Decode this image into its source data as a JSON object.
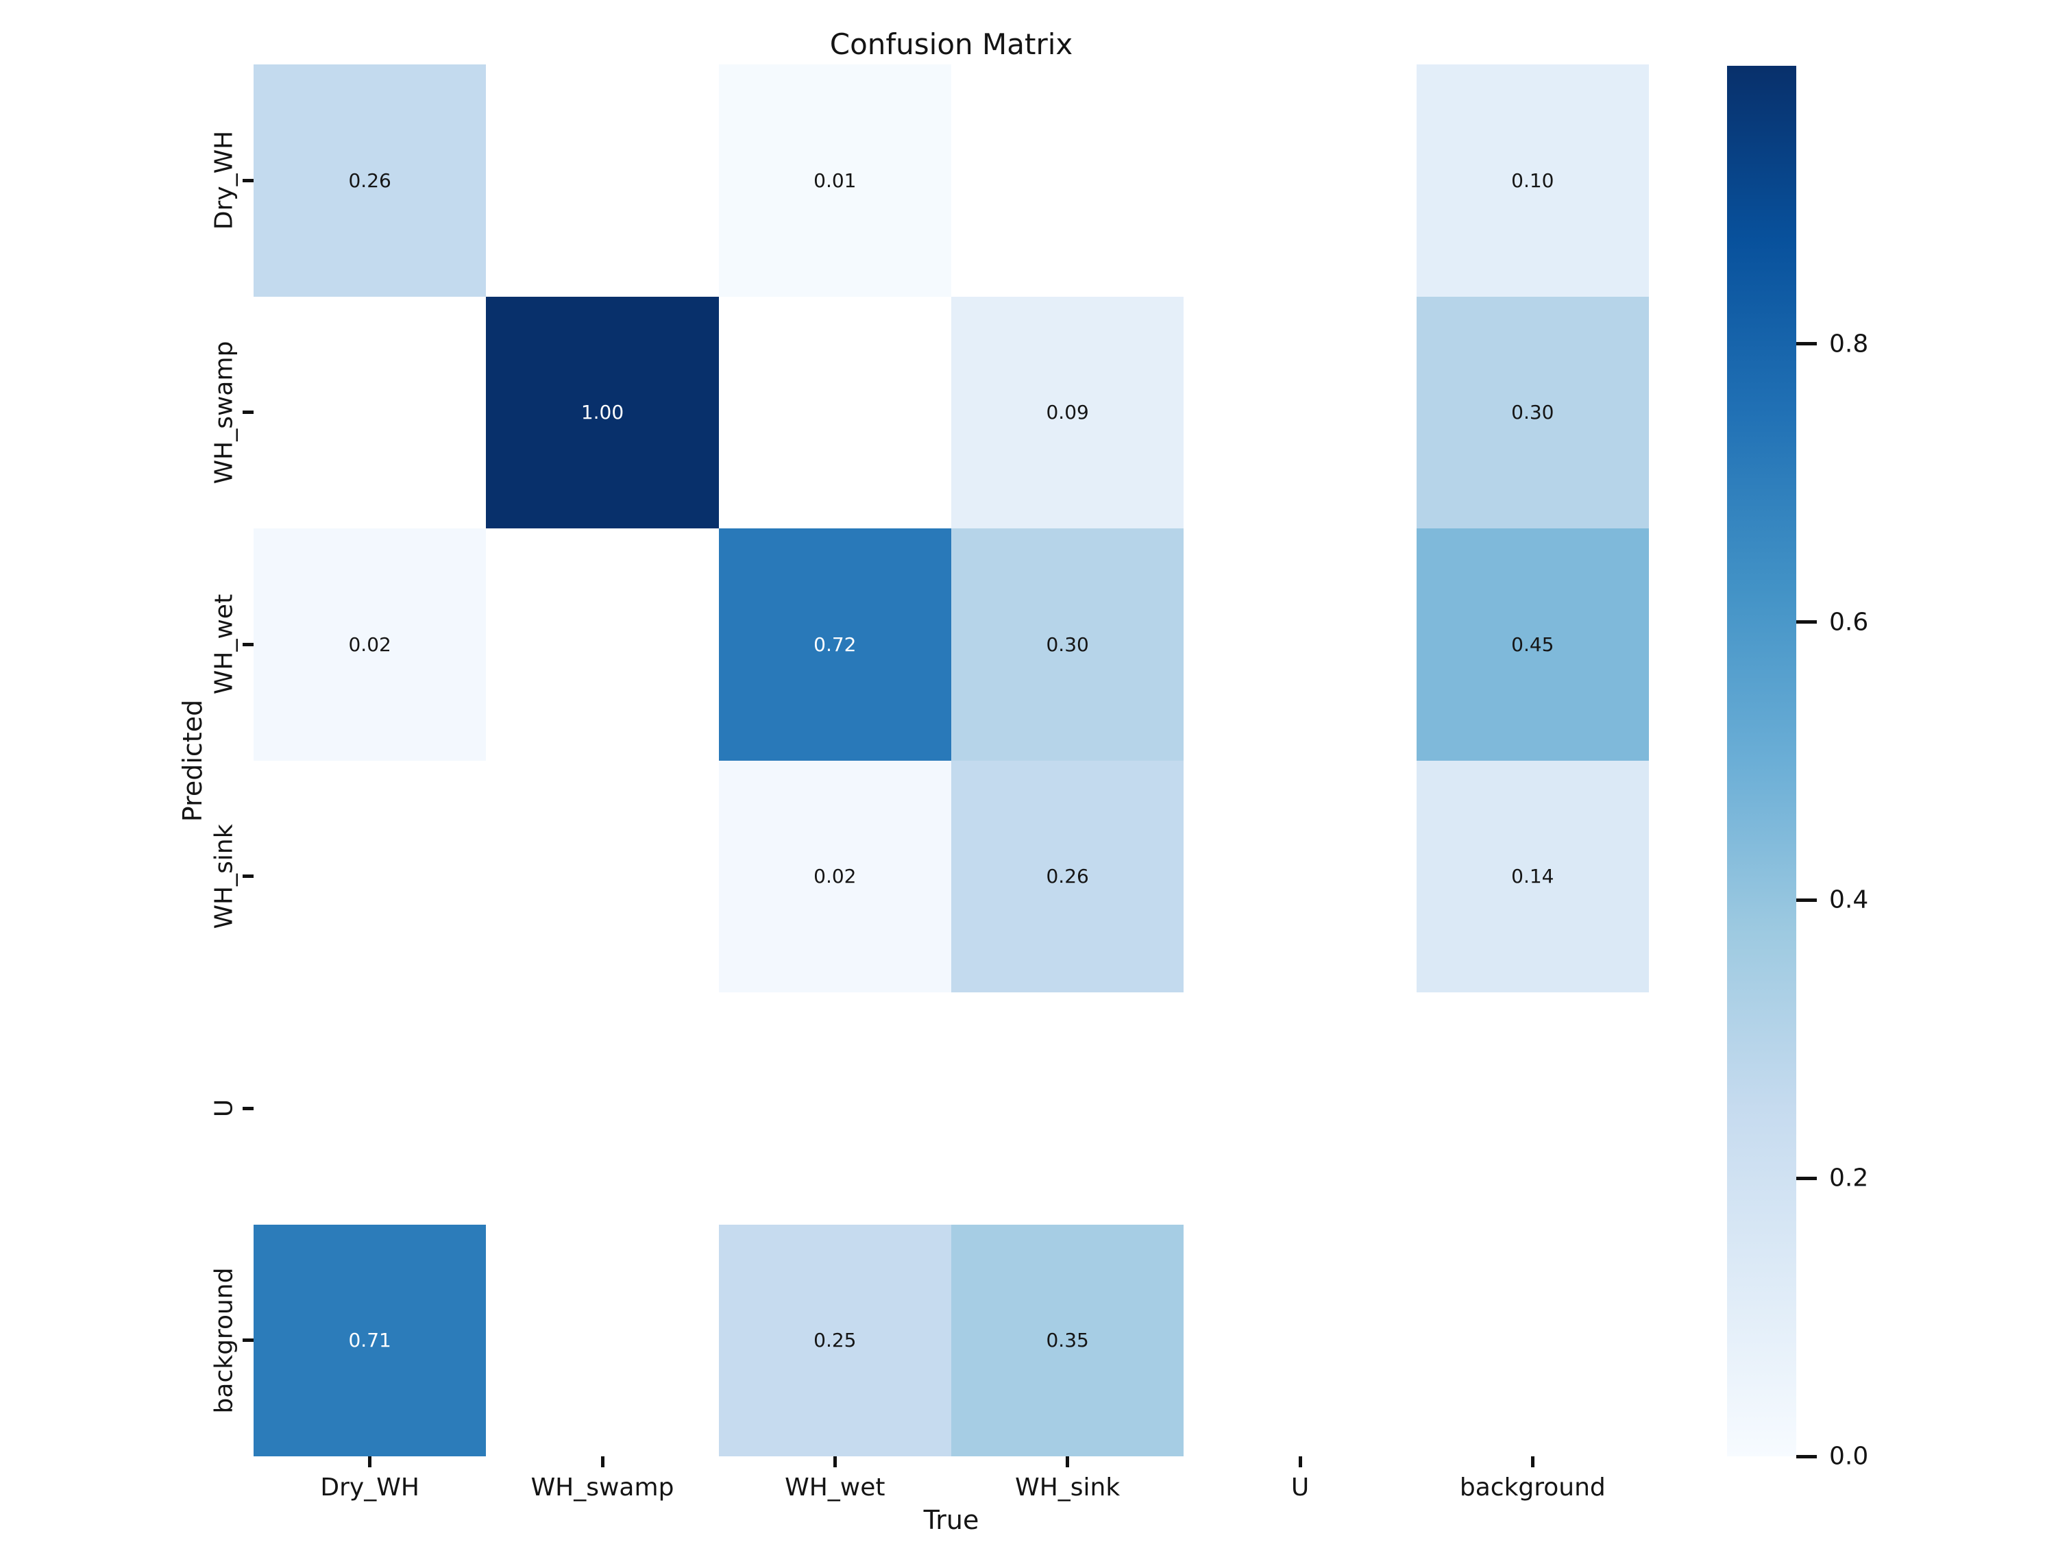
{
  "figure": {
    "title": "Confusion Matrix",
    "background": "#ffffff"
  },
  "chart_data": {
    "type": "heatmap",
    "title": "Confusion Matrix",
    "xlabel": "True",
    "ylabel": "Predicted",
    "x_categories": [
      "Dry_WH",
      "WH_swamp",
      "WH_wet",
      "WH_sink",
      "U",
      "background"
    ],
    "y_categories": [
      "Dry_WH",
      "WH_swamp",
      "WH_wet",
      "WH_sink",
      "U",
      "background"
    ],
    "matrix": [
      [
        0.26,
        null,
        0.01,
        null,
        null,
        0.1
      ],
      [
        null,
        1.0,
        null,
        0.09,
        null,
        0.3
      ],
      [
        0.02,
        null,
        0.72,
        0.3,
        null,
        0.45
      ],
      [
        null,
        null,
        0.02,
        0.26,
        null,
        0.14
      ],
      [
        null,
        null,
        null,
        null,
        null,
        null
      ],
      [
        0.71,
        null,
        0.25,
        0.35,
        null,
        null
      ]
    ],
    "annotation_format": "2dp",
    "colormap": "Blues",
    "vmin": 0.0,
    "vmax": 1.0,
    "grid": false,
    "legend": false,
    "colorbar": {
      "position": "right",
      "tick_labels": [
        "0.8",
        "0.6",
        "0.4",
        "0.2",
        "0.0"
      ],
      "tick_values": [
        0.8,
        0.6,
        0.4,
        0.2,
        0.0
      ]
    },
    "colors": {
      "cmap_low": "#f7fbff",
      "cmap_high": "#08306b",
      "annotation_dark": "#151515",
      "annotation_light": "#ffffff",
      "tick_color": "#111111"
    }
  }
}
